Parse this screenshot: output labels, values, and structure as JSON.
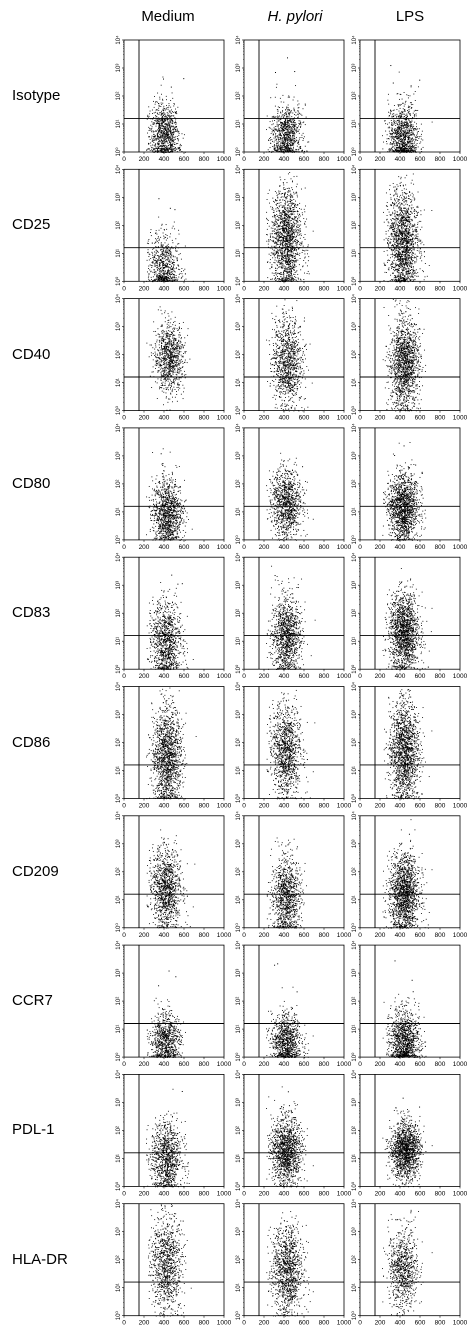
{
  "columns": [
    {
      "label": "Medium",
      "italic": false
    },
    {
      "label": "H. pylori",
      "italic": true
    },
    {
      "label": "LPS",
      "italic": false
    }
  ],
  "rows": [
    "Isotype",
    "CD25",
    "CD40",
    "CD80",
    "CD83",
    "CD86",
    "CD209",
    "CCR7",
    "PDL-1",
    "HLA-DR"
  ],
  "chart_data": {
    "type": "scatter",
    "description_units": "x = forward scatter (0-1000, linear); y = fluorescence intensity (log10 decades 0-4)",
    "x_axis": {
      "range": [
        0,
        1000
      ],
      "ticks": [
        "0",
        "200",
        "400",
        "600",
        "800",
        "1000"
      ]
    },
    "y_axis": {
      "scale": "log",
      "range_decades": [
        0,
        4
      ],
      "ticks": [
        "10⁰",
        "10¹",
        "10²",
        "10³",
        "10⁴"
      ]
    },
    "gate_x": 150,
    "gate_y_decade": 1.2,
    "panels": [
      [
        {
          "row": "Isotype",
          "column": "Medium",
          "center_x": 400,
          "center_y": 0.6,
          "spread_y": 0.55,
          "points": 900
        },
        {
          "row": "Isotype",
          "column": "H. pylori",
          "center_x": 420,
          "center_y": 0.6,
          "spread_y": 0.55,
          "points": 850
        },
        {
          "row": "Isotype",
          "column": "LPS",
          "center_x": 430,
          "center_y": 0.6,
          "spread_y": 0.6,
          "points": 950
        }
      ],
      [
        {
          "row": "CD25",
          "column": "Medium",
          "center_x": 400,
          "center_y": 0.5,
          "spread_y": 0.6,
          "points": 700
        },
        {
          "row": "CD25",
          "column": "H. pylori",
          "center_x": 420,
          "center_y": 1.5,
          "spread_y": 0.9,
          "points": 1500
        },
        {
          "row": "CD25",
          "column": "LPS",
          "center_x": 430,
          "center_y": 1.4,
          "spread_y": 0.9,
          "points": 1500
        }
      ],
      [
        {
          "row": "CD40",
          "column": "Medium",
          "center_x": 450,
          "center_y": 1.9,
          "spread_y": 0.6,
          "points": 900
        },
        {
          "row": "CD40",
          "column": "H. pylori",
          "center_x": 430,
          "center_y": 1.8,
          "spread_y": 0.8,
          "points": 1000
        },
        {
          "row": "CD40",
          "column": "LPS",
          "center_x": 440,
          "center_y": 1.7,
          "spread_y": 0.8,
          "points": 1400
        }
      ],
      [
        {
          "row": "CD80",
          "column": "Medium",
          "center_x": 430,
          "center_y": 1.0,
          "spread_y": 0.6,
          "points": 1100
        },
        {
          "row": "CD80",
          "column": "H. pylori",
          "center_x": 420,
          "center_y": 1.3,
          "spread_y": 0.6,
          "points": 1000
        },
        {
          "row": "CD80",
          "column": "LPS",
          "center_x": 430,
          "center_y": 1.2,
          "spread_y": 0.6,
          "points": 1400
        }
      ],
      [
        {
          "row": "CD83",
          "column": "Medium",
          "center_x": 420,
          "center_y": 1.0,
          "spread_y": 0.7,
          "points": 1000
        },
        {
          "row": "CD83",
          "column": "H. pylori",
          "center_x": 420,
          "center_y": 1.2,
          "spread_y": 0.7,
          "points": 1100
        },
        {
          "row": "CD83",
          "column": "LPS",
          "center_x": 440,
          "center_y": 1.3,
          "spread_y": 0.7,
          "points": 1500
        }
      ],
      [
        {
          "row": "CD86",
          "column": "Medium",
          "center_x": 430,
          "center_y": 1.5,
          "spread_y": 0.9,
          "points": 1400
        },
        {
          "row": "CD86",
          "column": "H. pylori",
          "center_x": 420,
          "center_y": 1.7,
          "spread_y": 0.8,
          "points": 1100
        },
        {
          "row": "CD86",
          "column": "LPS",
          "center_x": 440,
          "center_y": 1.7,
          "spread_y": 0.9,
          "points": 1500
        }
      ],
      [
        {
          "row": "CD209",
          "column": "Medium",
          "center_x": 420,
          "center_y": 1.4,
          "spread_y": 0.7,
          "points": 1100
        },
        {
          "row": "CD209",
          "column": "H. pylori",
          "center_x": 420,
          "center_y": 1.1,
          "spread_y": 0.7,
          "points": 1000
        },
        {
          "row": "CD209",
          "column": "LPS",
          "center_x": 440,
          "center_y": 1.2,
          "spread_y": 0.7,
          "points": 1500
        }
      ],
      [
        {
          "row": "CCR7",
          "column": "Medium",
          "center_x": 410,
          "center_y": 0.6,
          "spread_y": 0.5,
          "points": 800
        },
        {
          "row": "CCR7",
          "column": "H. pylori",
          "center_x": 420,
          "center_y": 0.6,
          "spread_y": 0.5,
          "points": 900
        },
        {
          "row": "CCR7",
          "column": "LPS",
          "center_x": 440,
          "center_y": 0.6,
          "spread_y": 0.55,
          "points": 1100
        }
      ],
      [
        {
          "row": "PDL-1",
          "column": "Medium",
          "center_x": 420,
          "center_y": 1.0,
          "spread_y": 0.65,
          "points": 1000
        },
        {
          "row": "PDL-1",
          "column": "H. pylori",
          "center_x": 420,
          "center_y": 1.3,
          "spread_y": 0.6,
          "points": 1300
        },
        {
          "row": "PDL-1",
          "column": "LPS",
          "center_x": 450,
          "center_y": 1.3,
          "spread_y": 0.5,
          "points": 1400
        }
      ],
      [
        {
          "row": "HLA-DR",
          "column": "Medium",
          "center_x": 420,
          "center_y": 1.9,
          "spread_y": 0.9,
          "points": 1000
        },
        {
          "row": "HLA-DR",
          "column": "H. pylori",
          "center_x": 430,
          "center_y": 1.6,
          "spread_y": 0.8,
          "points": 1100
        },
        {
          "row": "HLA-DR",
          "column": "LPS",
          "center_x": 430,
          "center_y": 1.7,
          "spread_y": 0.7,
          "points": 800
        }
      ]
    ]
  }
}
